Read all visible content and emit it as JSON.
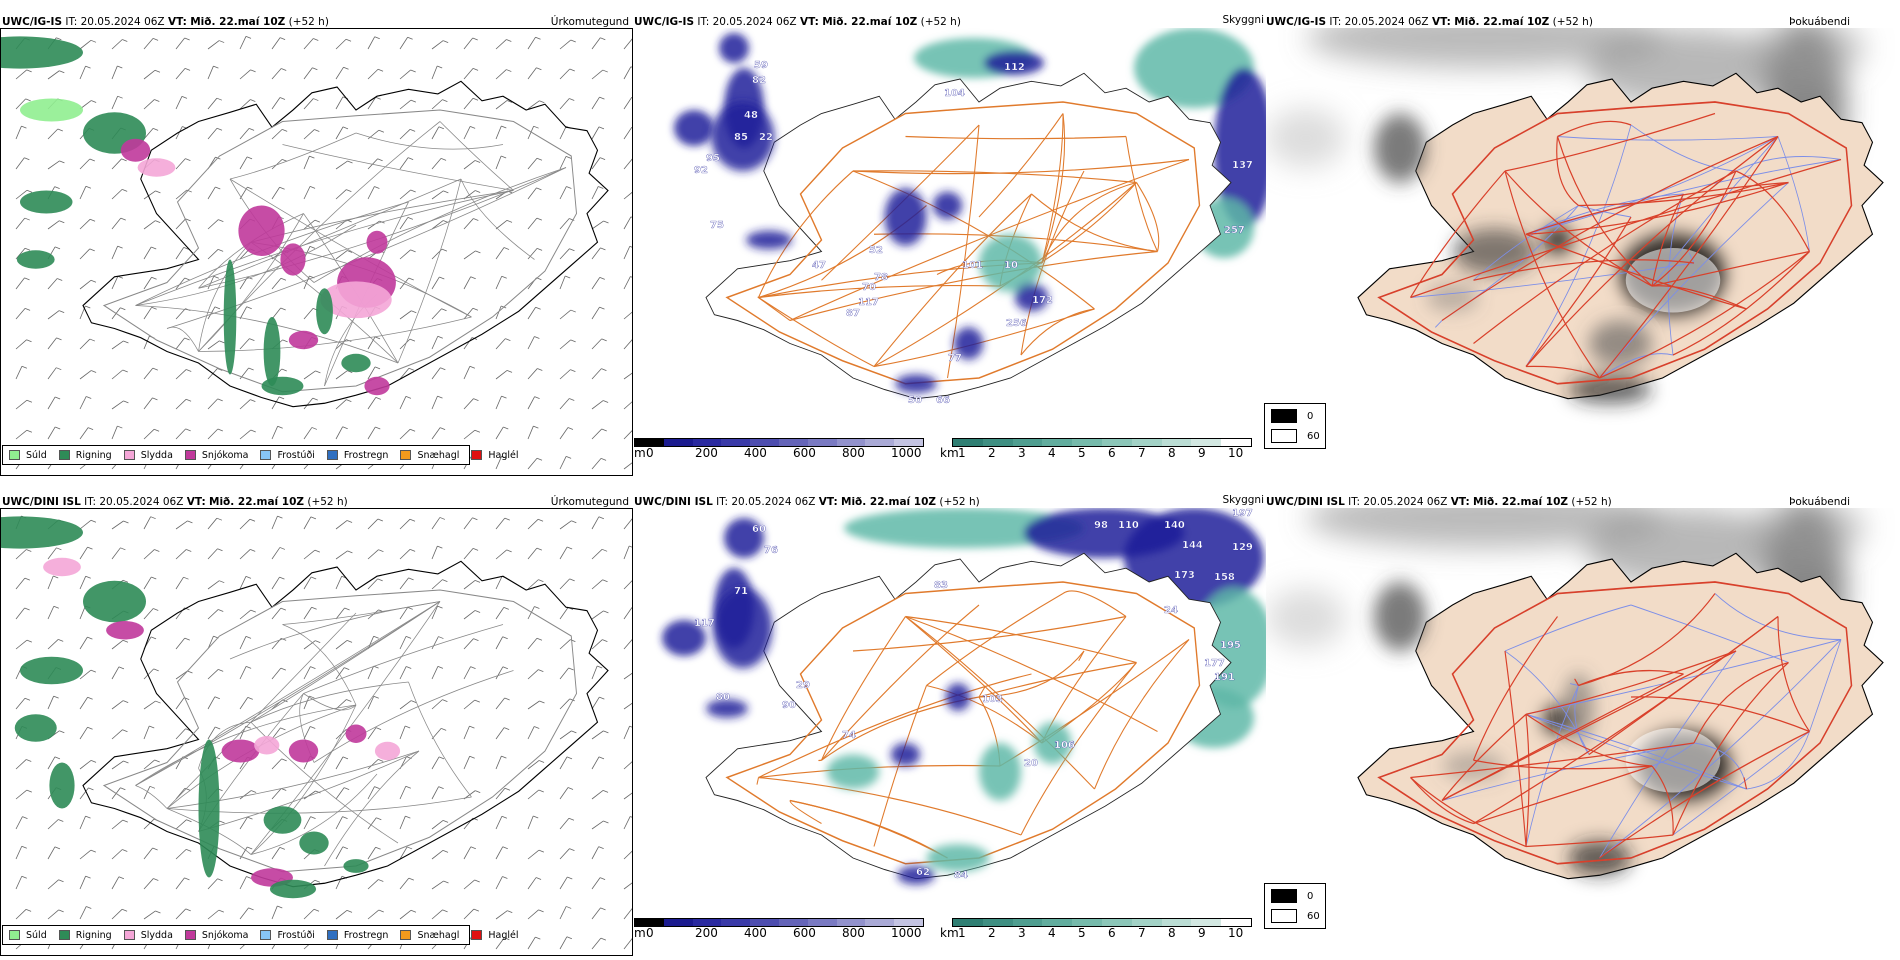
{
  "colors": {
    "sea_blue": "#1f1f9a",
    "sea_teal": "#5fb8a8",
    "land_fog": "#f2dcc8",
    "road_orange": "#e07a2c",
    "road_red": "#d9402a",
    "river_blue": "#7c8ee8"
  },
  "rows": [
    {
      "model": "UWC/IG-IS",
      "it_label": "IT:",
      "it_value": "20.05.2024 06Z",
      "vt_label": "VT:",
      "vt_value": "Mið. 22.maí 10Z",
      "lead": "(+52 h)",
      "precip_title": "Úrkomutegund",
      "cloud_title": "Skyggni",
      "fog_title": "Þokuábendi",
      "cloud_numbers": [
        "59",
        "82",
        "48",
        "85",
        "22",
        "95",
        "92",
        "104",
        "112",
        "137",
        "257",
        "47",
        "52",
        "70",
        "78",
        "117",
        "87",
        "101",
        "10",
        "172",
        "256",
        "77",
        "50",
        "66",
        "75"
      ],
      "has_fog_dark": true
    },
    {
      "model": "UWC/DINI ISL",
      "it_label": "IT:",
      "it_value": "20.05.2024 06Z",
      "vt_label": "VT:",
      "vt_value": "Mið. 22.maí 10Z",
      "lead": "(+52 h)",
      "precip_title": "Úrkomutegund",
      "cloud_title": "Skyggni",
      "fog_title": "Þokuábendi",
      "cloud_numbers": [
        "60",
        "76",
        "71",
        "117",
        "80",
        "90",
        "29",
        "74",
        "103",
        "83",
        "98",
        "110",
        "140",
        "197",
        "144",
        "129",
        "173",
        "158",
        "24",
        "195",
        "177",
        "191",
        "20",
        "106",
        "62",
        "84"
      ],
      "has_fog_dark": true
    }
  ],
  "precip_legend": [
    {
      "label": "Súld",
      "color": "#90ee90"
    },
    {
      "label": "Rigning",
      "color": "#2e8b57"
    },
    {
      "label": "Slydda",
      "color": "#f4a6d7"
    },
    {
      "label": "Snjókoma",
      "color": "#c0399b"
    },
    {
      "label": "Frostúði",
      "color": "#87c4f5"
    },
    {
      "label": "Frostregn",
      "color": "#2f6fc0"
    },
    {
      "label": "Snæhagl",
      "color": "#f29a1c"
    },
    {
      "label": "Haglél",
      "color": "#e01010"
    }
  ],
  "cbar_height": {
    "unit": "m",
    "ticks": [
      "0",
      "200",
      "400",
      "600",
      "800",
      "1000"
    ],
    "colors": [
      "#000000",
      "#1b1b8f",
      "#2a2aa0",
      "#3a3aa8",
      "#4d4daf",
      "#6464b8",
      "#7a7ac2",
      "#9292cc",
      "#aaaad6",
      "#c4c4e2"
    ]
  },
  "cbar_visibility": {
    "unit": "km",
    "ticks": [
      "1",
      "2",
      "3",
      "4",
      "5",
      "6",
      "7",
      "8",
      "9",
      "10"
    ],
    "colors": [
      "#2f7f73",
      "#3f8f82",
      "#4f9e90",
      "#62ad9e",
      "#76baab",
      "#8cc6b8",
      "#a3d2c6",
      "#bbddd4",
      "#d3e8e2",
      "#ffffff"
    ]
  },
  "fog_legend": [
    {
      "label": "0",
      "color": "#000000"
    },
    {
      "label": "60",
      "color": "#ffffff"
    }
  ]
}
